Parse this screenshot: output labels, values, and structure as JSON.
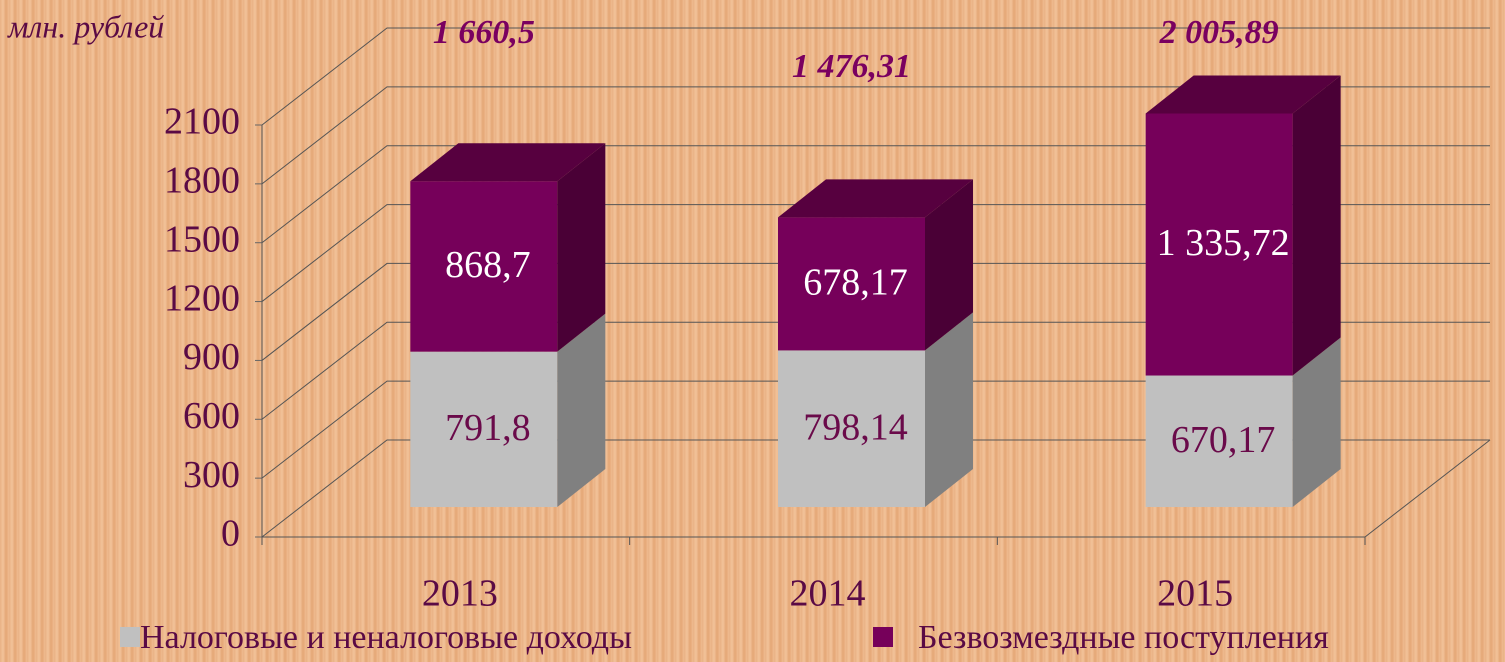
{
  "chart_data": {
    "type": "bar3d_stacked",
    "axis_label": "млн. рублей",
    "categories": [
      "2013",
      "2014",
      "2015"
    ],
    "series": [
      {
        "name": "Налоговые и неналоговые доходы",
        "color": "#c0c0c0",
        "side_color": "#808080",
        "top_color": "#d8d8d8",
        "values": [
          791.8,
          798.14,
          670.17
        ],
        "value_labels": [
          "791,8",
          "798,14",
          "670,17"
        ],
        "label_color": "#6a0a4a"
      },
      {
        "name": "Безвозмездные поступления",
        "color": "#76005a",
        "side_color": "#4a0036",
        "top_color": "#57003f",
        "values": [
          868.7,
          678.17,
          1335.72
        ],
        "value_labels": [
          "868,7",
          "678,17",
          "1 335,72"
        ],
        "label_color": "#ffffff"
      }
    ],
    "total_labels": [
      "1 660,5",
      "1 476,31",
      "2 005,89"
    ],
    "ylim": [
      0,
      2100
    ],
    "yticks": [
      0,
      300,
      600,
      900,
      1200,
      1500,
      1800,
      2100
    ],
    "grid": true
  }
}
